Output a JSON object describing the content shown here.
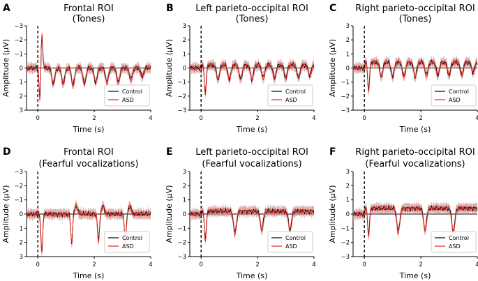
{
  "figure": {
    "ylabel": "Amplitude (μV)",
    "xlabel": "Time (s)"
  },
  "colors": {
    "control": "#000000",
    "control_band": "#9a9a9a",
    "asd": "#e8211d",
    "asd_band": "#f08a84"
  },
  "chart_data": [
    {
      "type": "line",
      "panel": "A",
      "title": "Frontal ROI",
      "subtitle": "(Tones)",
      "xlabel": "Time (s)",
      "ylabel": "Amplitude (μV)",
      "xlim": [
        -0.4,
        4
      ],
      "ylim": [
        -3,
        3
      ],
      "y_inverted": false,
      "xticks": [
        "0",
        "2",
        "4"
      ],
      "yticks": [
        "-3",
        "-2",
        "-1",
        "0",
        "1",
        "2",
        "3"
      ],
      "legend": "lower-right",
      "series": [
        {
          "name": "Control",
          "color": "#000000",
          "shaded_error": true
        },
        {
          "name": "ASD",
          "color": "#e8211d",
          "shaded_error": true
        }
      ],
      "stimulus_onset": 0,
      "response_peaks": [
        {
          "t": 0.08,
          "amp": 2.4
        },
        {
          "t": 0.14,
          "amp": -2.6
        },
        {
          "t": 0.55,
          "amp": 1.1
        },
        {
          "t": 0.9,
          "amp": 1.1
        },
        {
          "t": 1.25,
          "amp": 1.2
        },
        {
          "t": 1.65,
          "amp": 1.1
        },
        {
          "t": 2.05,
          "amp": 1.0
        },
        {
          "t": 2.45,
          "amp": 1.0
        },
        {
          "t": 2.85,
          "amp": 1.0
        },
        {
          "t": 3.3,
          "amp": 0.8
        },
        {
          "t": 3.7,
          "amp": 0.6
        }
      ],
      "baseline": 0
    },
    {
      "type": "line",
      "panel": "B",
      "title": "Left parieto-occipital ROI",
      "subtitle": "(Tones)",
      "xlabel": "Time (s)",
      "ylabel": "Amplitude (μV)",
      "xlim": [
        -0.4,
        4
      ],
      "ylim": [
        3,
        -3
      ],
      "y_inverted": true,
      "xticks": [
        "0",
        "2",
        "4"
      ],
      "yticks": [
        "-3",
        "-2",
        "-1",
        "0",
        "1",
        "2",
        "3"
      ],
      "legend": "lower-right",
      "series": [
        {
          "name": "Control",
          "color": "#000000",
          "shaded_error": true
        },
        {
          "name": "ASD",
          "color": "#e8211d",
          "shaded_error": true
        }
      ],
      "stimulus_onset": 0,
      "response_peaks": [
        {
          "t": 0.15,
          "amp": -2.0
        },
        {
          "t": 0.6,
          "amp": -1.0
        },
        {
          "t": 1.0,
          "amp": -1.0
        },
        {
          "t": 1.4,
          "amp": -1.0
        },
        {
          "t": 1.8,
          "amp": -1.0
        },
        {
          "t": 2.2,
          "amp": -0.9
        },
        {
          "t": 2.6,
          "amp": -0.9
        },
        {
          "t": 3.0,
          "amp": -0.9
        },
        {
          "t": 3.45,
          "amp": -0.9
        },
        {
          "t": 3.85,
          "amp": -0.7
        }
      ],
      "baseline": 0.2
    },
    {
      "type": "line",
      "panel": "C",
      "title": "Right parieto-occipital ROI",
      "subtitle": "(Tones)",
      "xlabel": "Time (s)",
      "ylabel": "Amplitude (μV)",
      "xlim": [
        -0.4,
        4
      ],
      "ylim": [
        3,
        -3
      ],
      "y_inverted": true,
      "xticks": [
        "0",
        "2",
        "4"
      ],
      "yticks": [
        "-3",
        "-2",
        "-1",
        "0",
        "1",
        "2",
        "3"
      ],
      "legend": "lower-right",
      "series": [
        {
          "name": "Control",
          "color": "#000000",
          "shaded_error": true
        },
        {
          "name": "ASD",
          "color": "#e8211d",
          "shaded_error": true
        }
      ],
      "stimulus_onset": 0,
      "response_peaks": [
        {
          "t": 0.15,
          "amp": -2.0
        },
        {
          "t": 0.6,
          "amp": -1.0
        },
        {
          "t": 1.0,
          "amp": -1.0
        },
        {
          "t": 1.4,
          "amp": -1.0
        },
        {
          "t": 1.8,
          "amp": -1.0
        },
        {
          "t": 2.2,
          "amp": -0.9
        },
        {
          "t": 2.6,
          "amp": -0.9
        },
        {
          "t": 3.0,
          "amp": -0.9
        },
        {
          "t": 3.45,
          "amp": -0.9
        },
        {
          "t": 3.85,
          "amp": -0.7
        }
      ],
      "baseline": 0.4
    },
    {
      "type": "line",
      "panel": "D",
      "title": "Frontal ROI",
      "subtitle": "(Fearful vocalizations)",
      "xlabel": "Time (s)",
      "ylabel": "Amplitude (μV)",
      "xlim": [
        -0.4,
        4
      ],
      "ylim": [
        -3,
        3
      ],
      "y_inverted": false,
      "xticks": [
        "0",
        "2",
        "4"
      ],
      "yticks": [
        "-3",
        "-2",
        "-1",
        "0",
        "1",
        "2",
        "3"
      ],
      "legend": "lower-right",
      "series": [
        {
          "name": "Control",
          "color": "#000000",
          "shaded_error": true
        },
        {
          "name": "ASD",
          "color": "#e8211d",
          "shaded_error": true
        }
      ],
      "stimulus_onset": 0,
      "response_peaks": [
        {
          "t": 0.14,
          "amp": 2.6
        },
        {
          "t": 1.2,
          "amp": 2.0
        },
        {
          "t": 2.15,
          "amp": 1.9
        },
        {
          "t": 3.1,
          "amp": 2.0
        }
      ],
      "baseline": 0
    },
    {
      "type": "line",
      "panel": "E",
      "title": "Left parieto-occipital ROI",
      "subtitle": "(Fearful vocalizations)",
      "xlabel": "Time (s)",
      "ylabel": "Amplitude (μV)",
      "xlim": [
        -0.4,
        4
      ],
      "ylim": [
        3,
        -3
      ],
      "y_inverted": true,
      "xticks": [
        "0",
        "2",
        "4"
      ],
      "yticks": [
        "-3",
        "-2",
        "-1",
        "0",
        "1",
        "2",
        "3"
      ],
      "legend": "lower-right",
      "series": [
        {
          "name": "Control",
          "color": "#000000",
          "shaded_error": true
        },
        {
          "name": "ASD",
          "color": "#e8211d",
          "shaded_error": true
        }
      ],
      "stimulus_onset": 0,
      "response_peaks": [
        {
          "t": 0.15,
          "amp": -2.0
        },
        {
          "t": 1.2,
          "amp": -1.5
        },
        {
          "t": 2.15,
          "amp": -1.3
        },
        {
          "t": 3.15,
          "amp": -1.3
        }
      ],
      "baseline": 0.2
    },
    {
      "type": "line",
      "panel": "F",
      "title": "Right parieto-occipital ROI",
      "subtitle": "(Fearful vocalizations)",
      "xlabel": "Time (s)",
      "ylabel": "Amplitude (μV)",
      "xlim": [
        -0.4,
        4
      ],
      "ylim": [
        3,
        -3
      ],
      "y_inverted": true,
      "xticks": [
        "0",
        "2",
        "4"
      ],
      "yticks": [
        "-3",
        "-2",
        "-1",
        "0",
        "1",
        "2",
        "3"
      ],
      "legend": "lower-right",
      "series": [
        {
          "name": "Control",
          "color": "#000000",
          "shaded_error": true
        },
        {
          "name": "ASD",
          "color": "#e8211d",
          "shaded_error": true
        }
      ],
      "stimulus_onset": 0,
      "response_peaks": [
        {
          "t": 0.15,
          "amp": -1.9
        },
        {
          "t": 1.2,
          "amp": -1.6
        },
        {
          "t": 2.15,
          "amp": -1.5
        },
        {
          "t": 3.15,
          "amp": -1.6
        }
      ],
      "baseline": 0.4
    }
  ]
}
